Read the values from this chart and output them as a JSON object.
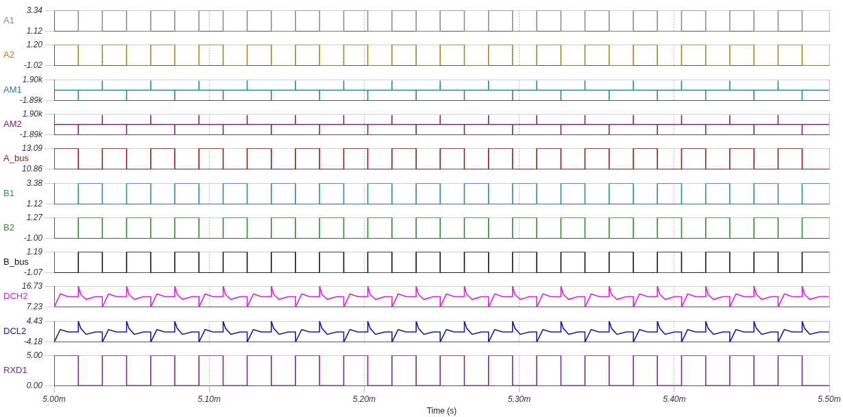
{
  "chart_data": [
    {
      "type": "step",
      "ylabel": "A1",
      "color": "#8c8c8c",
      "xlim": [
        5,
        5.5
      ],
      "xticks": [
        5,
        5.1,
        5.2,
        5.3,
        5.4,
        5.5
      ],
      "ylim": [
        1.12,
        3.34
      ],
      "yticks": [
        1.12,
        3.34
      ],
      "grid": true,
      "tick_labels": "y",
      "x": [
        5,
        5.0156,
        5.0311,
        5.0467,
        5.0623,
        5.0778,
        5.0934,
        5.109,
        5.1245,
        5.1401,
        5.1557,
        5.1712,
        5.1868,
        5.2023,
        5.2179,
        5.2335,
        5.249,
        5.2646,
        5.2802,
        5.2957,
        5.3113,
        5.3269,
        5.3424,
        5.358,
        5.3736,
        5.3891,
        5.4047,
        5.4203,
        5.4358,
        5.4514,
        5.467,
        5.4825,
        5.5
      ],
      "values": [
        3.34,
        1.12,
        3.34,
        1.12,
        3.34,
        1.12,
        3.34,
        1.12,
        3.34,
        1.12,
        3.34,
        1.12,
        3.34,
        1.12,
        3.34,
        1.12,
        3.34,
        1.12,
        3.34,
        1.12,
        3.34,
        1.12,
        3.34,
        1.12,
        3.34,
        1.12,
        3.34,
        1.12,
        3.34,
        1.12,
        3.34,
        1.12,
        1.12
      ]
    },
    {
      "type": "step",
      "ylabel": "A2",
      "color": "#8f8f26",
      "xlim": [
        5,
        5.5
      ],
      "xticks": [
        5,
        5.1,
        5.2,
        5.3,
        5.4,
        5.5
      ],
      "ylim": [
        -1.02,
        1.2
      ],
      "yticks": [
        -1.02,
        {
          "value": 1.2,
          "label": "1.20"
        }
      ],
      "grid": true,
      "tick_labels": "y",
      "x": [
        5,
        5.0156,
        5.0311,
        5.0467,
        5.0623,
        5.0778,
        5.0934,
        5.109,
        5.1245,
        5.1401,
        5.1557,
        5.1712,
        5.1868,
        5.2023,
        5.2179,
        5.2335,
        5.249,
        5.2646,
        5.2802,
        5.2957,
        5.3113,
        5.3269,
        5.3424,
        5.358,
        5.3736,
        5.3891,
        5.4047,
        5.4203,
        5.4358,
        5.4514,
        5.467,
        5.4825,
        5.5
      ],
      "values": [
        1.2,
        -1.02,
        1.2,
        -1.02,
        1.2,
        -1.02,
        1.2,
        -1.02,
        1.2,
        -1.02,
        1.2,
        -1.02,
        1.2,
        -1.02,
        1.2,
        -1.02,
        1.2,
        -1.02,
        1.2,
        -1.02,
        1.2,
        -1.02,
        1.2,
        -1.02,
        1.2,
        -1.02,
        1.2,
        -1.02,
        1.2,
        -1.02,
        1.2,
        -1.02,
        -1.02
      ]
    },
    {
      "type": "line",
      "ylabel": "AM1",
      "color": "#1f8a8f",
      "xlim": [
        5,
        5.5
      ],
      "xticks": [
        5,
        5.1,
        5.2,
        5.3,
        5.4,
        5.5
      ],
      "ylim": [
        -1890,
        1900
      ],
      "yticks": [
        {
          "value": -1890,
          "label": "-1.89k"
        },
        {
          "value": 1900,
          "label": "1.90k"
        }
      ],
      "grid": true,
      "tick_labels": "y",
      "x": [
        5,
        5,
        5,
        5.0156,
        5.0156,
        5.0156,
        5.0311,
        5.0311,
        5.0311,
        5.0467,
        5.0467,
        5.0467,
        5.0623,
        5.0623,
        5.0623,
        5.0778,
        5.0778,
        5.0778,
        5.0934,
        5.0934,
        5.0934,
        5.109,
        5.109,
        5.109,
        5.1245,
        5.1245,
        5.1245,
        5.1401,
        5.1401,
        5.1401,
        5.1557,
        5.1557,
        5.1557,
        5.1712,
        5.1712,
        5.1712,
        5.1868,
        5.1868,
        5.1868,
        5.2023,
        5.2023,
        5.2023,
        5.2179,
        5.2179,
        5.2179,
        5.2335,
        5.2335,
        5.2335,
        5.249,
        5.249,
        5.249,
        5.2646,
        5.2646,
        5.2646,
        5.2802,
        5.2802,
        5.2802,
        5.2957,
        5.2957,
        5.2957,
        5.3113,
        5.3113,
        5.3113,
        5.3269,
        5.3269,
        5.3269,
        5.3424,
        5.3424,
        5.3424,
        5.358,
        5.358,
        5.358,
        5.3736,
        5.3736,
        5.3736,
        5.3891,
        5.3891,
        5.3891,
        5.4047,
        5.4047,
        5.4047,
        5.4203,
        5.4203,
        5.4203,
        5.4358,
        5.4358,
        5.4358,
        5.4514,
        5.4514,
        5.4514,
        5.467,
        5.467,
        5.467,
        5.4825,
        5.4825,
        5.4825,
        5.5
      ],
      "values": [
        0,
        1900,
        0,
        0,
        -1890,
        0,
        0,
        1670,
        0,
        0,
        -1890,
        0,
        0,
        1670,
        0,
        0,
        -1890,
        0,
        0,
        1670,
        0,
        0,
        -1890,
        0,
        0,
        1670,
        0,
        0,
        -1890,
        0,
        0,
        1670,
        0,
        0,
        -1890,
        0,
        0,
        1670,
        0,
        0,
        -1890,
        0,
        0,
        1670,
        0,
        0,
        -1890,
        0,
        0,
        1670,
        0,
        0,
        -1890,
        0,
        0,
        1670,
        0,
        0,
        -1890,
        0,
        0,
        1670,
        0,
        0,
        -1890,
        0,
        0,
        1670,
        0,
        0,
        -1890,
        0,
        0,
        1670,
        0,
        0,
        -1890,
        0,
        0,
        1670,
        0,
        0,
        -1890,
        0,
        0,
        1670,
        0,
        0,
        -1890,
        0,
        0,
        1670,
        0,
        0,
        -1890,
        0,
        0
      ]
    },
    {
      "type": "line",
      "ylabel": "AM2",
      "color": "#7d1f80",
      "xlim": [
        5,
        5.5
      ],
      "xticks": [
        5,
        5.1,
        5.2,
        5.3,
        5.4,
        5.5
      ],
      "ylim": [
        -1890,
        1900
      ],
      "yticks": [
        {
          "value": -1890,
          "label": "-1.89k"
        },
        {
          "value": 1900,
          "label": "1.90k"
        }
      ],
      "grid": true,
      "tick_labels": "y",
      "x": [
        5,
        5,
        5,
        5.0156,
        5.0156,
        5.0156,
        5.0311,
        5.0311,
        5.0311,
        5.0467,
        5.0467,
        5.0467,
        5.0623,
        5.0623,
        5.0623,
        5.0778,
        5.0778,
        5.0778,
        5.0934,
        5.0934,
        5.0934,
        5.109,
        5.109,
        5.109,
        5.1245,
        5.1245,
        5.1245,
        5.1401,
        5.1401,
        5.1401,
        5.1557,
        5.1557,
        5.1557,
        5.1712,
        5.1712,
        5.1712,
        5.1868,
        5.1868,
        5.1868,
        5.2023,
        5.2023,
        5.2023,
        5.2179,
        5.2179,
        5.2179,
        5.2335,
        5.2335,
        5.2335,
        5.249,
        5.249,
        5.249,
        5.2646,
        5.2646,
        5.2646,
        5.2802,
        5.2802,
        5.2802,
        5.2957,
        5.2957,
        5.2957,
        5.3113,
        5.3113,
        5.3113,
        5.3269,
        5.3269,
        5.3269,
        5.3424,
        5.3424,
        5.3424,
        5.358,
        5.358,
        5.358,
        5.3736,
        5.3736,
        5.3736,
        5.3891,
        5.3891,
        5.3891,
        5.4047,
        5.4047,
        5.4047,
        5.4203,
        5.4203,
        5.4203,
        5.4358,
        5.4358,
        5.4358,
        5.4514,
        5.4514,
        5.4514,
        5.467,
        5.467,
        5.467,
        5.4825,
        5.4825,
        5.4825,
        5.5
      ],
      "values": [
        0,
        1900,
        0,
        0,
        -1890,
        0,
        0,
        1630,
        0,
        0,
        -1890,
        0,
        0,
        1630,
        0,
        0,
        -1890,
        0,
        0,
        1630,
        0,
        0,
        -1890,
        0,
        0,
        1630,
        0,
        0,
        -1890,
        0,
        0,
        1630,
        0,
        0,
        -1890,
        0,
        0,
        1630,
        0,
        0,
        -1890,
        0,
        0,
        1630,
        0,
        0,
        -1890,
        0,
        0,
        1630,
        0,
        0,
        -1890,
        0,
        0,
        1630,
        0,
        0,
        -1890,
        0,
        0,
        1630,
        0,
        0,
        -1890,
        0,
        0,
        1630,
        0,
        0,
        -1890,
        0,
        0,
        1630,
        0,
        0,
        -1890,
        0,
        0,
        1630,
        0,
        0,
        -1890,
        0,
        0,
        1630,
        0,
        0,
        -1890,
        0,
        0,
        1630,
        0,
        0,
        -1890,
        0,
        0
      ]
    },
    {
      "type": "step",
      "ylabel": "A_bus",
      "color": "#8b1c1c",
      "xlim": [
        5,
        5.5
      ],
      "xticks": [
        5,
        5.1,
        5.2,
        5.3,
        5.4,
        5.5
      ],
      "ylim": [
        10.86,
        13.09
      ],
      "yticks": [
        10.86,
        13.09
      ],
      "grid": true,
      "tick_labels": "y",
      "x": [
        5,
        5.0156,
        5.0311,
        5.0467,
        5.0623,
        5.0778,
        5.0934,
        5.109,
        5.1245,
        5.1401,
        5.1557,
        5.1712,
        5.1868,
        5.2023,
        5.2179,
        5.2335,
        5.249,
        5.2646,
        5.2802,
        5.2957,
        5.3113,
        5.3269,
        5.3424,
        5.358,
        5.3736,
        5.3891,
        5.4047,
        5.4203,
        5.4358,
        5.4514,
        5.467,
        5.4825,
        5.5
      ],
      "values": [
        13.09,
        10.86,
        13.09,
        10.86,
        13.09,
        10.86,
        13.09,
        10.86,
        13.09,
        10.86,
        13.09,
        10.86,
        13.09,
        10.86,
        13.09,
        10.86,
        13.09,
        10.86,
        13.09,
        10.86,
        13.09,
        10.86,
        13.09,
        10.86,
        13.09,
        10.86,
        13.09,
        10.86,
        13.09,
        10.86,
        13.09,
        10.86,
        10.86
      ]
    },
    {
      "type": "step",
      "ylabel": "B1",
      "color": "#2a8d98",
      "xlim": [
        5,
        5.5
      ],
      "xticks": [
        5,
        5.1,
        5.2,
        5.3,
        5.4,
        5.5
      ],
      "ylim": [
        1.12,
        3.38
      ],
      "yticks": [
        1.12,
        3.38
      ],
      "grid": true,
      "tick_labels": "y",
      "x": [
        5,
        5.0156,
        5.0311,
        5.0467,
        5.0623,
        5.0778,
        5.0934,
        5.109,
        5.1245,
        5.1401,
        5.1557,
        5.1712,
        5.1868,
        5.2023,
        5.2179,
        5.2335,
        5.249,
        5.2646,
        5.2802,
        5.2957,
        5.3113,
        5.3269,
        5.3424,
        5.358,
        5.3736,
        5.3891,
        5.4047,
        5.4203,
        5.4358,
        5.4514,
        5.467,
        5.4825,
        5.5
      ],
      "values": [
        1.12,
        3.38,
        1.12,
        3.38,
        1.12,
        3.38,
        1.12,
        3.38,
        1.12,
        3.38,
        1.12,
        3.38,
        1.12,
        3.38,
        1.12,
        3.38,
        1.12,
        3.38,
        1.12,
        3.38,
        1.12,
        3.38,
        1.12,
        3.38,
        1.12,
        3.38,
        1.12,
        3.38,
        1.12,
        3.38,
        1.12,
        3.38,
        3.38
      ]
    },
    {
      "type": "step",
      "ylabel": "B2",
      "color": "#2e8a2e",
      "xlim": [
        5,
        5.5
      ],
      "xticks": [
        5,
        5.1,
        5.2,
        5.3,
        5.4,
        5.5
      ],
      "ylim": [
        -1,
        1.27
      ],
      "yticks": [
        {
          "value": -1,
          "label": "-1.00"
        },
        1.27
      ],
      "grid": true,
      "tick_labels": "y",
      "x": [
        5,
        5.0156,
        5.0311,
        5.0467,
        5.0623,
        5.0778,
        5.0934,
        5.109,
        5.1245,
        5.1401,
        5.1557,
        5.1712,
        5.1868,
        5.2023,
        5.2179,
        5.2335,
        5.249,
        5.2646,
        5.2802,
        5.2957,
        5.3113,
        5.3269,
        5.3424,
        5.358,
        5.3736,
        5.3891,
        5.4047,
        5.4203,
        5.4358,
        5.4514,
        5.467,
        5.4825,
        5.5
      ],
      "values": [
        -1,
        1.27,
        -1,
        1.27,
        -1,
        1.27,
        -1,
        1.27,
        -1,
        1.27,
        -1,
        1.27,
        -1,
        1.27,
        -1,
        1.27,
        -1,
        1.27,
        -1,
        1.27,
        -1,
        1.27,
        -1,
        1.27,
        -1,
        1.27,
        -1,
        1.27,
        -1,
        1.27,
        -1,
        1.27,
        1.27
      ]
    },
    {
      "type": "step",
      "ylabel": "B_bus",
      "color": "#111111",
      "xlim": [
        5,
        5.5
      ],
      "xticks": [
        5,
        5.1,
        5.2,
        5.3,
        5.4,
        5.5
      ],
      "ylim": [
        -1.07,
        1.19
      ],
      "yticks": [
        -1.07,
        1.19
      ],
      "grid": true,
      "tick_labels": "y",
      "x": [
        5,
        5.0156,
        5.0311,
        5.0467,
        5.0623,
        5.0778,
        5.0934,
        5.109,
        5.1245,
        5.1401,
        5.1557,
        5.1712,
        5.1868,
        5.2023,
        5.2179,
        5.2335,
        5.249,
        5.2646,
        5.2802,
        5.2957,
        5.3113,
        5.3269,
        5.3424,
        5.358,
        5.3736,
        5.3891,
        5.4047,
        5.4203,
        5.4358,
        5.4514,
        5.467,
        5.4825,
        5.5
      ],
      "values": [
        -1.07,
        1.19,
        -1.07,
        1.19,
        -1.07,
        1.19,
        -1.07,
        1.19,
        -1.07,
        1.19,
        -1.07,
        1.19,
        -1.07,
        1.19,
        -1.07,
        1.19,
        -1.07,
        1.19,
        -1.07,
        1.19,
        -1.07,
        1.19,
        -1.07,
        1.19,
        -1.07,
        1.19,
        -1.07,
        1.19,
        -1.07,
        1.19,
        -1.07,
        1.19,
        1.19
      ]
    },
    {
      "type": "line",
      "ylabel": "DCH2",
      "color": "#e020e0",
      "xlim": [
        5,
        5.5
      ],
      "xticks": [
        5,
        5.1,
        5.2,
        5.3,
        5.4,
        5.5
      ],
      "ylim": [
        7.23,
        16.73
      ],
      "yticks": [
        7.23,
        16.73
      ],
      "grid": true,
      "tick_labels": "y",
      "x": [
        5,
        5.004,
        5.009,
        5.0156,
        5.0156,
        5.0171,
        5.0206,
        5.0266,
        5.0311,
        5.0311,
        5.0351,
        5.0401,
        5.0467,
        5.0467,
        5.0482,
        5.0517,
        5.0577,
        5.0623,
        5.0623,
        5.0663,
        5.0713,
        5.0778,
        5.0778,
        5.0793,
        5.0828,
        5.0888,
        5.0934,
        5.0934,
        5.0974,
        5.1024,
        5.109,
        5.109,
        5.1105,
        5.114,
        5.12,
        5.1245,
        5.1245,
        5.1285,
        5.1335,
        5.1401,
        5.1401,
        5.1416,
        5.1451,
        5.1511,
        5.1557,
        5.1557,
        5.1597,
        5.1647,
        5.1712,
        5.1712,
        5.1727,
        5.1762,
        5.1822,
        5.1868,
        5.1868,
        5.1908,
        5.1958,
        5.2023,
        5.2023,
        5.2038,
        5.2073,
        5.2133,
        5.2179,
        5.2179,
        5.2219,
        5.2269,
        5.2335,
        5.2335,
        5.235,
        5.2385,
        5.2445,
        5.249,
        5.249,
        5.253,
        5.258,
        5.2646,
        5.2646,
        5.2661,
        5.2696,
        5.2756,
        5.2802,
        5.2802,
        5.2842,
        5.2892,
        5.2957,
        5.2957,
        5.2972,
        5.3007,
        5.3067,
        5.3113,
        5.3113,
        5.3153,
        5.3203,
        5.3269,
        5.3269,
        5.3284,
        5.3319,
        5.3379,
        5.3424,
        5.3424,
        5.3464,
        5.3514,
        5.358,
        5.358,
        5.3595,
        5.363,
        5.369,
        5.3736,
        5.3736,
        5.3776,
        5.3826,
        5.3891,
        5.3891,
        5.3906,
        5.3941,
        5.4001,
        5.4047,
        5.4047,
        5.4087,
        5.4137,
        5.4203,
        5.4203,
        5.4218,
        5.4253,
        5.4313,
        5.4358,
        5.4358,
        5.4398,
        5.4448,
        5.4514,
        5.4514,
        5.4529,
        5.4564,
        5.4624,
        5.467,
        5.467,
        5.471,
        5.476,
        5.4825,
        5.4825,
        5.484,
        5.4875,
        5.4935,
        5.5
      ],
      "values": [
        7.23,
        13.2,
        12,
        12,
        16.73,
        13,
        10.7,
        12,
        12,
        7.23,
        13.2,
        12,
        12,
        16.73,
        13,
        10.7,
        12,
        12,
        7.23,
        13.2,
        12,
        12,
        16.73,
        13,
        10.7,
        12,
        12,
        7.23,
        13.2,
        12,
        12,
        16.73,
        13,
        10.7,
        12,
        12,
        7.23,
        13.2,
        12,
        12,
        16.73,
        13,
        10.7,
        12,
        12,
        7.23,
        13.2,
        12,
        12,
        16.73,
        13,
        10.7,
        12,
        12,
        7.23,
        13.2,
        12,
        12,
        16.73,
        13,
        10.7,
        12,
        12,
        7.23,
        13.2,
        12,
        12,
        16.73,
        13,
        10.7,
        12,
        12,
        7.23,
        13.2,
        12,
        12,
        16.73,
        13,
        10.7,
        12,
        12,
        7.23,
        13.2,
        12,
        12,
        16.73,
        13,
        10.7,
        12,
        12,
        7.23,
        13.2,
        12,
        12,
        16.73,
        13,
        10.7,
        12,
        12,
        7.23,
        13.2,
        12,
        12,
        16.73,
        13,
        10.7,
        12,
        12,
        7.23,
        13.2,
        12,
        12,
        16.73,
        13,
        10.7,
        12,
        12,
        7.23,
        13.2,
        12,
        12,
        16.73,
        13,
        10.7,
        12,
        12,
        7.23,
        13.2,
        12,
        12,
        16.73,
        13,
        10.7,
        12,
        12,
        7.23,
        13.2,
        12,
        12,
        16.73,
        13,
        10.7,
        12,
        12
      ]
    },
    {
      "type": "line",
      "ylabel": "DCL2",
      "color": "#1a1aa8",
      "xlim": [
        5,
        5.5
      ],
      "xticks": [
        5,
        5.1,
        5.2,
        5.3,
        5.4,
        5.5
      ],
      "ylim": [
        -4.18,
        4.43
      ],
      "yticks": [
        -4.18,
        4.43
      ],
      "grid": true,
      "tick_labels": "y",
      "x": [
        5,
        5.004,
        5.009,
        5.0156,
        5.0156,
        5.0171,
        5.0206,
        5.0266,
        5.0311,
        5.0311,
        5.0351,
        5.0401,
        5.0467,
        5.0467,
        5.0482,
        5.0517,
        5.0577,
        5.0623,
        5.0623,
        5.0663,
        5.0713,
        5.0778,
        5.0778,
        5.0793,
        5.0828,
        5.0888,
        5.0934,
        5.0934,
        5.0974,
        5.1024,
        5.109,
        5.109,
        5.1105,
        5.114,
        5.12,
        5.1245,
        5.1245,
        5.1285,
        5.1335,
        5.1401,
        5.1401,
        5.1416,
        5.1451,
        5.1511,
        5.1557,
        5.1557,
        5.1597,
        5.1647,
        5.1712,
        5.1712,
        5.1727,
        5.1762,
        5.1822,
        5.1868,
        5.1868,
        5.1908,
        5.1958,
        5.2023,
        5.2023,
        5.2038,
        5.2073,
        5.2133,
        5.2179,
        5.2179,
        5.2219,
        5.2269,
        5.2335,
        5.2335,
        5.235,
        5.2385,
        5.2445,
        5.249,
        5.249,
        5.253,
        5.258,
        5.2646,
        5.2646,
        5.2661,
        5.2696,
        5.2756,
        5.2802,
        5.2802,
        5.2842,
        5.2892,
        5.2957,
        5.2957,
        5.2972,
        5.3007,
        5.3067,
        5.3113,
        5.3113,
        5.3153,
        5.3203,
        5.3269,
        5.3269,
        5.3284,
        5.3319,
        5.3379,
        5.3424,
        5.3424,
        5.3464,
        5.3514,
        5.358,
        5.358,
        5.3595,
        5.363,
        5.369,
        5.3736,
        5.3736,
        5.3776,
        5.3826,
        5.3891,
        5.3891,
        5.3906,
        5.3941,
        5.4001,
        5.4047,
        5.4047,
        5.4087,
        5.4137,
        5.4203,
        5.4203,
        5.4218,
        5.4253,
        5.4313,
        5.4358,
        5.4358,
        5.4398,
        5.4448,
        5.4514,
        5.4514,
        5.4529,
        5.4564,
        5.4624,
        5.467,
        5.467,
        5.471,
        5.476,
        5.4825,
        5.4825,
        5.484,
        5.4875,
        5.4935,
        5.5
      ],
      "values": [
        -4.18,
        1,
        0,
        0,
        4.43,
        1.5,
        -1,
        0,
        0,
        -4.18,
        1,
        0,
        0,
        4.43,
        1.5,
        -1,
        0,
        0,
        -4.18,
        1,
        0,
        0,
        4.43,
        1.5,
        -1,
        0,
        0,
        -4.18,
        1,
        0,
        0,
        4.43,
        1.5,
        -1,
        0,
        0,
        -4.18,
        1,
        0,
        0,
        4.43,
        1.5,
        -1,
        0,
        0,
        -4.18,
        1,
        0,
        0,
        4.43,
        1.5,
        -1,
        0,
        0,
        -4.18,
        1,
        0,
        0,
        4.43,
        1.5,
        -1,
        0,
        0,
        -4.18,
        1,
        0,
        0,
        4.43,
        1.5,
        -1,
        0,
        0,
        -4.18,
        1,
        0,
        0,
        4.43,
        1.5,
        -1,
        0,
        0,
        -4.18,
        1,
        0,
        0,
        4.43,
        1.5,
        -1,
        0,
        0,
        -4.18,
        1,
        0,
        0,
        4.43,
        1.5,
        -1,
        0,
        0,
        -4.18,
        1,
        0,
        0,
        4.43,
        1.5,
        -1,
        0,
        0,
        -4.18,
        1,
        0,
        0,
        4.43,
        1.5,
        -1,
        0,
        0,
        -4.18,
        1,
        0,
        0,
        4.43,
        1.5,
        -1,
        0,
        0,
        -4.18,
        1,
        0,
        0,
        4.43,
        1.5,
        -1,
        0,
        0,
        -4.18,
        1,
        0,
        0,
        4.43,
        1.5,
        -1,
        0,
        0
      ]
    },
    {
      "type": "step",
      "ylabel": "RXD1",
      "color": "#7a2a88",
      "xlabel": "Time (s)",
      "xlim": [
        5,
        5.5
      ],
      "xticks": [
        {
          "value": 5,
          "label": "5.00m"
        },
        {
          "value": 5.1,
          "label": "5.10m"
        },
        {
          "value": 5.2,
          "label": "5.20m"
        },
        {
          "value": 5.3,
          "label": "5.30m"
        },
        {
          "value": 5.4,
          "label": "5.40m"
        },
        {
          "value": 5.5,
          "label": "5.50m"
        }
      ],
      "ylim": [
        0,
        5
      ],
      "yticks": [
        {
          "value": 0,
          "label": "0.00"
        },
        {
          "value": 5,
          "label": "5.00"
        }
      ],
      "grid": true,
      "x": [
        5,
        5.0156,
        5.0311,
        5.0467,
        5.0623,
        5.0778,
        5.0934,
        5.109,
        5.1245,
        5.1401,
        5.1557,
        5.1712,
        5.1868,
        5.2023,
        5.2179,
        5.2335,
        5.249,
        5.2646,
        5.2802,
        5.2957,
        5.3113,
        5.3269,
        5.3424,
        5.358,
        5.3736,
        5.3891,
        5.4047,
        5.4203,
        5.4358,
        5.4514,
        5.467,
        5.4825,
        5.5
      ],
      "values": [
        5,
        0,
        5,
        0,
        5,
        0,
        5,
        0,
        5,
        0,
        5,
        0,
        5,
        0,
        5,
        0,
        5,
        0,
        5,
        0,
        5,
        0,
        5,
        0,
        5,
        0,
        5,
        0,
        5,
        0,
        5,
        0,
        0
      ]
    }
  ]
}
